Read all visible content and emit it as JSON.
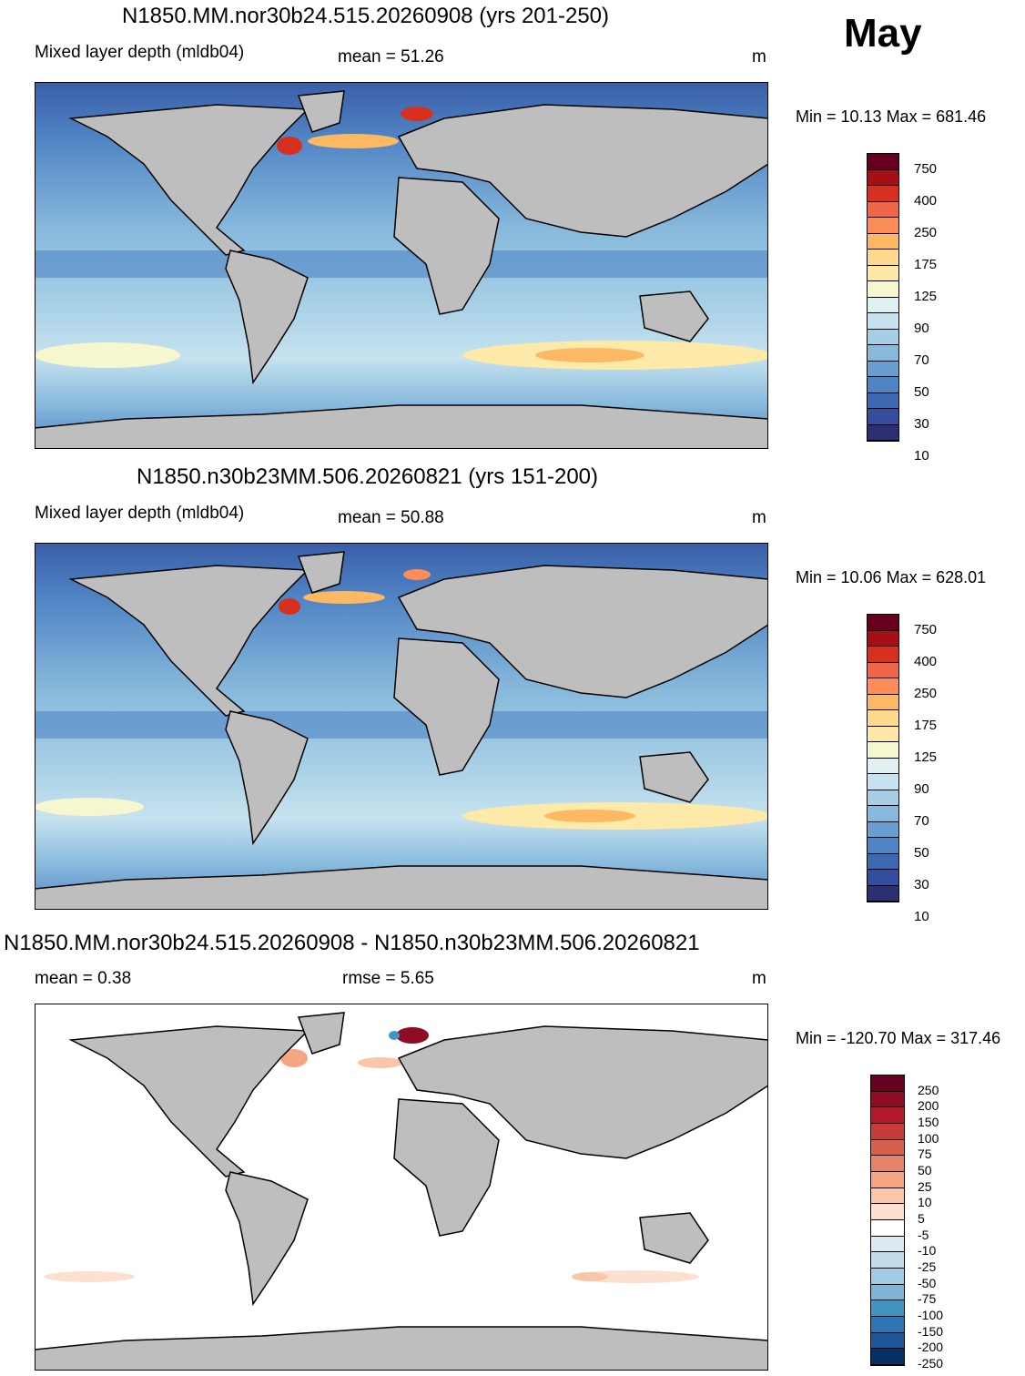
{
  "month": "May",
  "panels": [
    {
      "title": "N1850.MM.nor30b24.515.20260908 (yrs 201-250)",
      "left_label": "Mixed layer depth (mldb04)",
      "center_label": "mean =  51.26",
      "unit": "m",
      "minmax": "Min =  10.13 Max = 681.46",
      "colorbar": {
        "labels": [
          "750",
          "400",
          "250",
          "175",
          "125",
          "90",
          "70",
          "50",
          "30",
          "10"
        ],
        "colors": [
          "#67001f",
          "#a50f15",
          "#d7301f",
          "#ef6548",
          "#fc8d59",
          "#fdb863",
          "#fed98e",
          "#fee8a8",
          "#f7f7cf",
          "#e0f1f4",
          "#c6e3ef",
          "#a6cfe6",
          "#87b9dc",
          "#689fd0",
          "#4f84c4",
          "#3f68b3",
          "#344d9c",
          "#2c2f74"
        ]
      }
    },
    {
      "title": "N1850.n30b23MM.506.20260821 (yrs 151-200)",
      "left_label": "Mixed layer depth (mldb04)",
      "center_label": "mean =  50.88",
      "unit": "m",
      "minmax": "Min =  10.06 Max = 628.01",
      "colorbar": {
        "labels": [
          "750",
          "400",
          "250",
          "175",
          "125",
          "90",
          "70",
          "50",
          "30",
          "10"
        ],
        "colors": [
          "#67001f",
          "#a50f15",
          "#d7301f",
          "#ef6548",
          "#fc8d59",
          "#fdb863",
          "#fed98e",
          "#fee8a8",
          "#f7f7cf",
          "#e0f1f4",
          "#c6e3ef",
          "#a6cfe6",
          "#87b9dc",
          "#689fd0",
          "#4f84c4",
          "#3f68b3",
          "#344d9c",
          "#2c2f74"
        ]
      }
    },
    {
      "title": "N1850.MM.nor30b24.515.20260908 - N1850.n30b23MM.506.20260821",
      "left_label": "mean =   0.38",
      "center_label": "rmse =   5.65",
      "unit": "m",
      "minmax": "Min = -120.70 Max = 317.46",
      "colorbar": {
        "labels": [
          "250",
          "200",
          "150",
          "100",
          "75",
          "50",
          "25",
          "10",
          "5",
          "-5",
          "-10",
          "-25",
          "-50",
          "-75",
          "-100",
          "-150",
          "-200",
          "-250"
        ],
        "colors": [
          "#67001f",
          "#8e0d25",
          "#b2182b",
          "#c73b3b",
          "#d6604d",
          "#e58267",
          "#f4a582",
          "#f9c6aa",
          "#fde0cf",
          "#ffffff",
          "#ddeaf3",
          "#c2dceb",
          "#a3cbe2",
          "#7fb6d6",
          "#4393c3",
          "#2f75b2",
          "#20579a",
          "#053061"
        ]
      }
    }
  ]
}
